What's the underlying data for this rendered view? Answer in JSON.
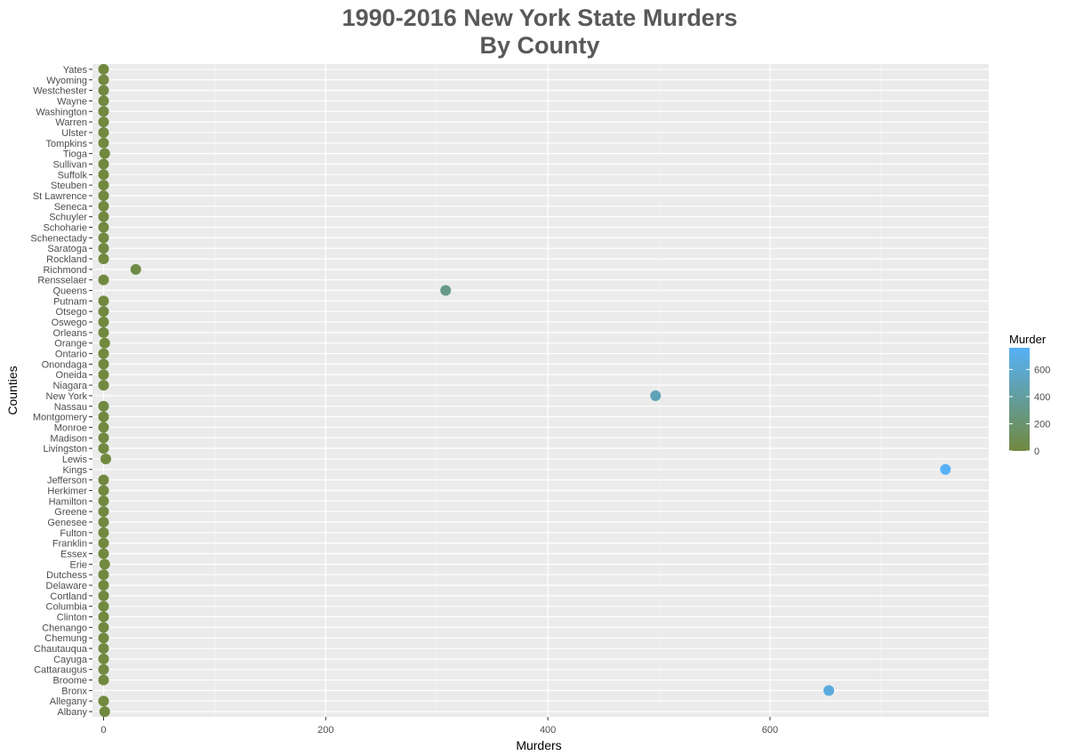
{
  "chart_data": {
    "type": "scatter",
    "title_line1": "1990-2016 New York State Murders",
    "title_line2": "By County",
    "xlabel": "Murders",
    "ylabel": "Counties",
    "xlim": [
      -10,
      797
    ],
    "x_ticks": [
      0,
      200,
      400,
      600
    ],
    "x_minor_ticks": [
      100,
      300,
      500,
      700
    ],
    "grid": true,
    "legend": {
      "title": "Murder",
      "position": "right",
      "ticks": [
        0,
        200,
        400,
        600
      ],
      "range": [
        0,
        760
      ],
      "low_color": "#71893F",
      "high_color": "#56B1F7"
    },
    "categories": [
      "Albany",
      "Allegany",
      "Bronx",
      "Broome",
      "Cattaraugus",
      "Cayuga",
      "Chautauqua",
      "Chemung",
      "Chenango",
      "Clinton",
      "Columbia",
      "Cortland",
      "Delaware",
      "Dutchess",
      "Erie",
      "Essex",
      "Franklin",
      "Fulton",
      "Genesee",
      "Greene",
      "Hamilton",
      "Herkimer",
      "Jefferson",
      "Kings",
      "Lewis",
      "Livingston",
      "Madison",
      "Monroe",
      "Montgomery",
      "Nassau",
      "New York",
      "Niagara",
      "Oneida",
      "Onondaga",
      "Ontario",
      "Orange",
      "Orleans",
      "Oswego",
      "Otsego",
      "Putnam",
      "Queens",
      "Rensselaer",
      "Richmond",
      "Rockland",
      "Saratoga",
      "Schenectady",
      "Schoharie",
      "Schuyler",
      "Seneca",
      "St Lawrence",
      "Steuben",
      "Suffolk",
      "Sullivan",
      "Tioga",
      "Tompkins",
      "Ulster",
      "Warren",
      "Washington",
      "Wayne",
      "Westchester",
      "Wyoming",
      "Yates"
    ],
    "values": [
      1,
      0,
      653,
      0,
      0,
      0,
      0,
      0,
      0,
      0,
      0,
      0,
      0,
      0,
      1,
      0,
      0,
      0,
      0,
      0,
      0,
      0,
      0,
      758,
      2,
      0,
      0,
      0,
      0,
      0,
      497,
      0,
      0,
      0,
      0,
      1,
      0,
      0,
      0,
      0,
      308,
      0,
      29,
      0,
      0,
      0,
      0,
      0,
      0,
      0,
      0,
      0,
      0,
      1,
      0,
      0,
      0,
      0,
      0,
      0,
      0,
      0
    ]
  }
}
